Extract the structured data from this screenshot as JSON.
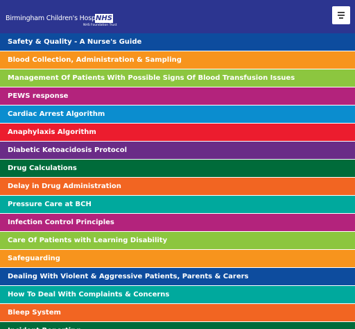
{
  "header": {
    "logo_name": "Birmingham Children's Hospital",
    "logo_nhs": "NHS",
    "logo_trust": "NHS Foundation Trust"
  },
  "menu": {
    "items": [
      "Safety & Quality - A Nurse's Guide",
      "Blood Collection, Administration & Sampling",
      "Management Of Patients With Possible Signs Of Blood Transfusion Issues",
      "PEWS response",
      "Cardiac Arrest Algorithm",
      "Anaphylaxis Algorithm",
      "Diabetic Ketoacidosis Protocol",
      "Drug Calculations",
      "Delay in Drug Administration",
      "Pressure Care at BCH",
      "Infection Control Principles",
      "Care Of Patients with Learning Disability",
      "Safeguarding",
      "Dealing With Violent & Aggressive Patients, Parents & Carers",
      "How To Deal With Complaints & Concerns",
      "Bleep System",
      "Incident Reporting"
    ]
  }
}
